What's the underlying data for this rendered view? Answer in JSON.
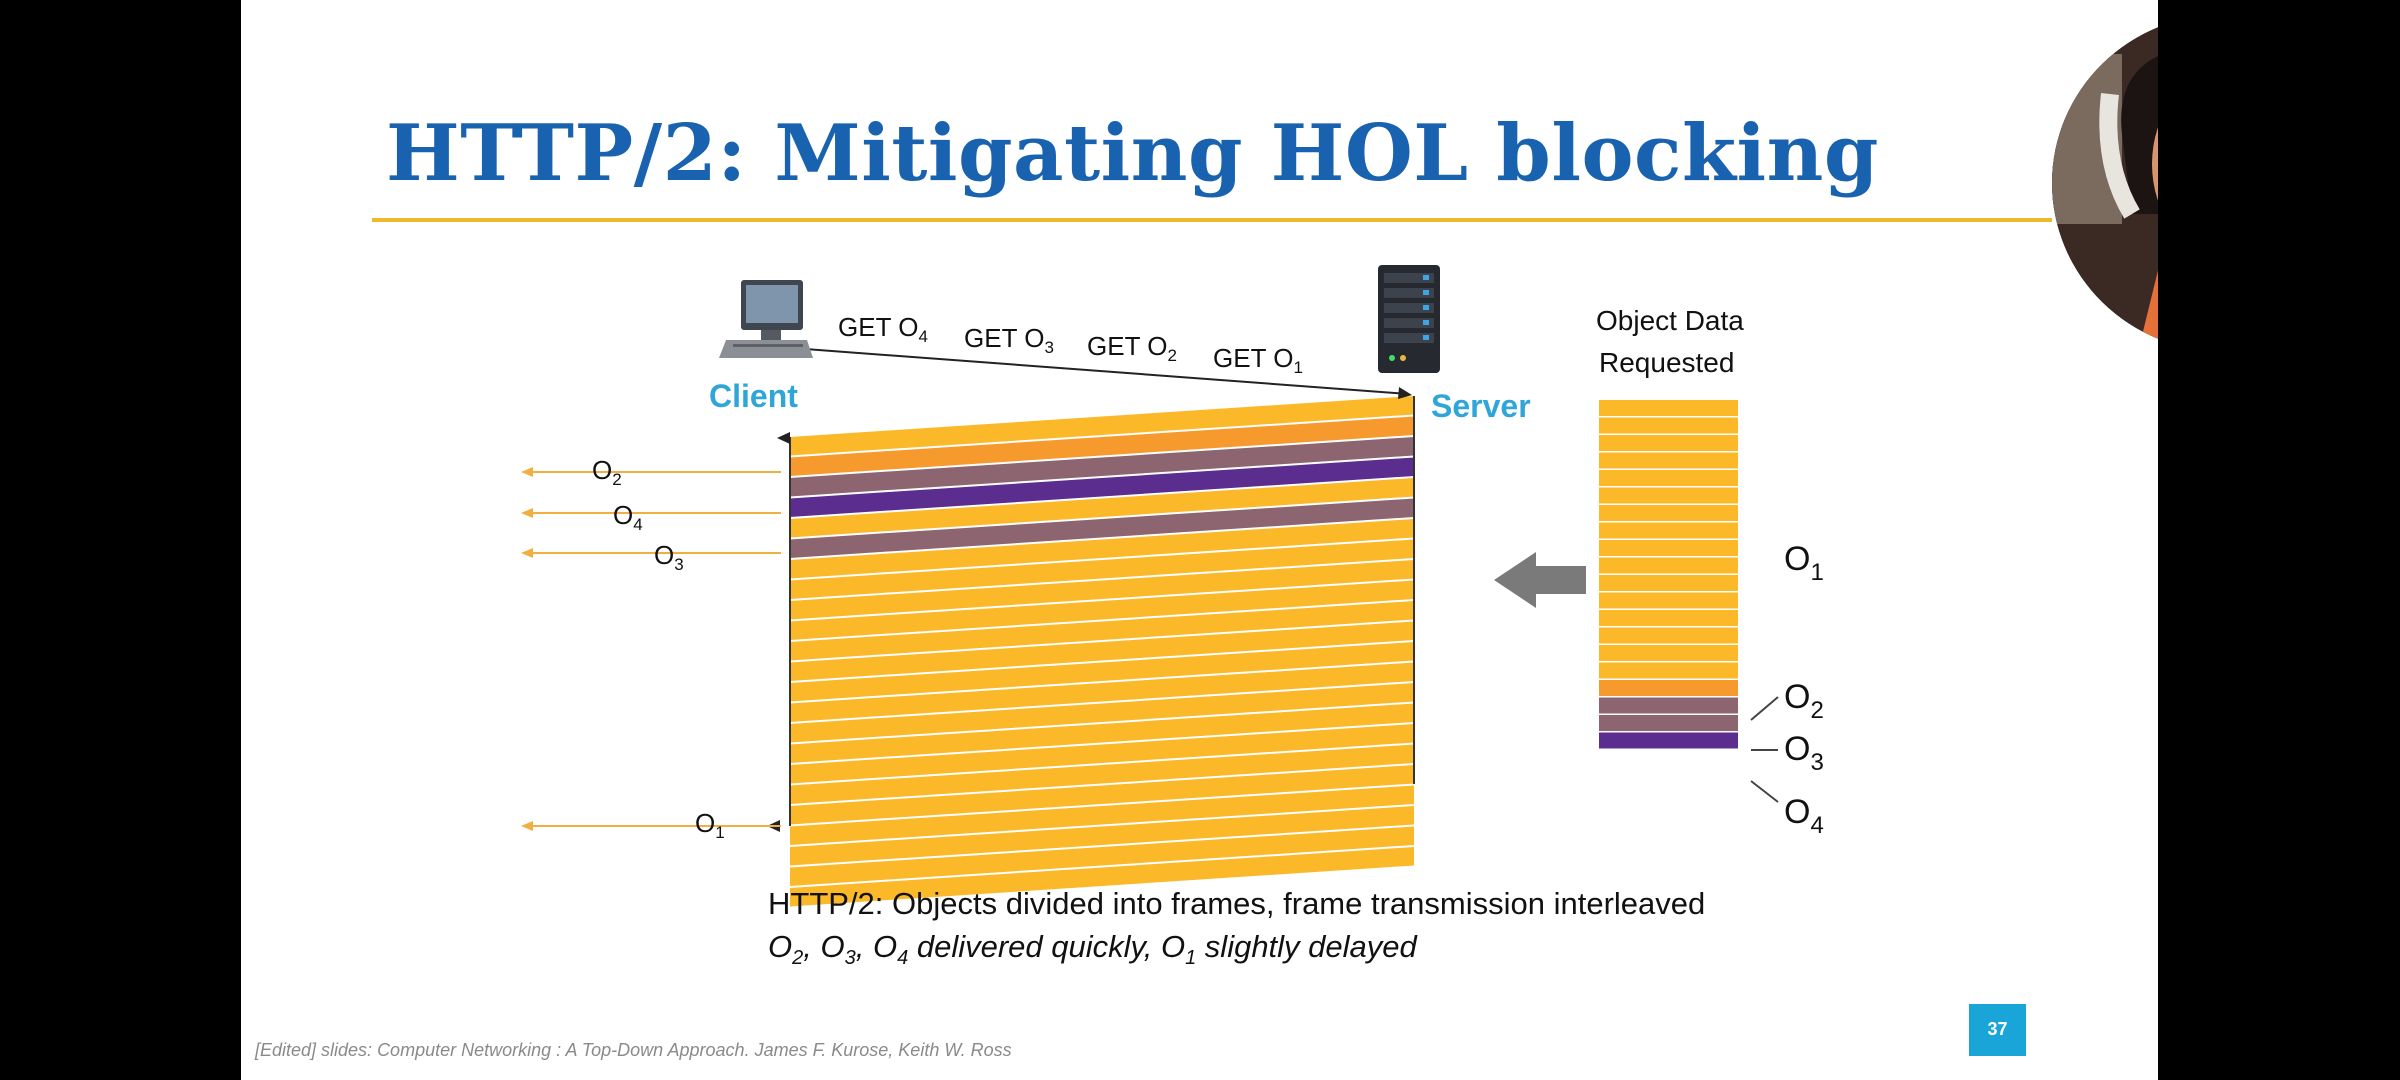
{
  "slide": {
    "title": "HTTP/2: Mitigating HOL blocking",
    "client_label": "Client",
    "server_label": "Server",
    "requests": [
      {
        "prefix": "GET O",
        "sub": "4"
      },
      {
        "prefix": "GET O",
        "sub": "3"
      },
      {
        "prefix": "GET O",
        "sub": "2"
      },
      {
        "prefix": "GET O",
        "sub": "1"
      }
    ],
    "delivered_labels": [
      {
        "prefix": "O",
        "sub": "2"
      },
      {
        "prefix": "O",
        "sub": "4"
      },
      {
        "prefix": "O",
        "sub": "3"
      },
      {
        "prefix": "O",
        "sub": "1"
      }
    ],
    "object_data_heading_line1": "Object Data",
    "object_data_heading_line2": "Requested",
    "object_labels": [
      {
        "prefix": "O",
        "sub": "1"
      },
      {
        "prefix": "O",
        "sub": "2"
      },
      {
        "prefix": "O",
        "sub": "3"
      },
      {
        "prefix": "O",
        "sub": "4"
      }
    ],
    "caption_line1": "HTTP/2: Objects divided into frames, frame transmission interleaved",
    "caption_line2_parts": [
      {
        "prefix": "O",
        "sub": "2"
      },
      {
        "text": ", "
      },
      {
        "prefix": "O",
        "sub": "3"
      },
      {
        "text": ", "
      },
      {
        "prefix": "O",
        "sub": "4"
      },
      {
        "text": " delivered quickly, "
      },
      {
        "prefix": "O",
        "sub": "1"
      },
      {
        "text": " slightly delayed"
      }
    ],
    "credit": "[Edited] slides: Computer Networking : A Top-Down Approach. James F. Kurose, Keith W. Ross",
    "page_number": "37"
  },
  "colors": {
    "title": "#1862b0",
    "rule": "#f0b92a",
    "o1_frame": "#fbb829",
    "o2_frame": "#f79a2d",
    "o3_frame": "#8d6570",
    "o4_frame": "#5b2d8f",
    "node_label": "#2fa6d8",
    "badge": "#19a5d7"
  },
  "icons": {
    "client": "desktop-computer-icon",
    "server": "server-tower-icon",
    "arrow": "left-arrow-icon"
  }
}
